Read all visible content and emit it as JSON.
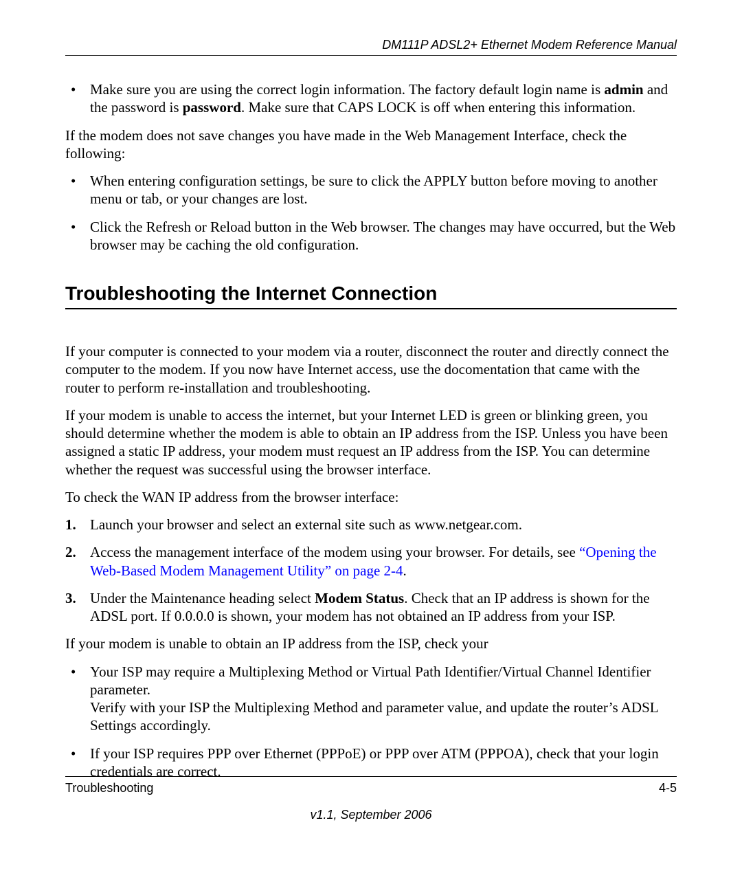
{
  "header": {
    "title": "DM111P ADSL2+ Ethernet Modem Reference Manual"
  },
  "intro_bullet": {
    "prefix": "Make sure you are using the correct login information. The factory default login name is ",
    "admin": "admin",
    "mid1": " and the password is ",
    "password": "password",
    "suffix": ". Make sure that CAPS LOCK is off when entering this information."
  },
  "para_nosave": "If the modem does not save changes you have made in the Web Management Interface, check the following:",
  "nosave_bullets": {
    "b1": "When entering configuration settings, be sure to click the APPLY button before moving to another menu or tab, or your changes are lost.",
    "b2": "Click the Refresh or Reload button in the Web browser. The changes may have occurred, but the Web browser may be caching the old configuration."
  },
  "section_title": "Troubleshooting the Internet Connection",
  "sec_p1": "If your computer is connected to your modem via a router, disconnect the router and directly connect the computer to the modem. If you now have Internet access, use the docomentation that came with the router to perform re-installation and troubleshooting.",
  "sec_p2": "If your modem is unable to access the internet, but your Internet LED is green or blinking green, you should determine whether the modem is able to obtain an IP address from the ISP. Unless you have been assigned a static IP address, your modem must request an IP address from the ISP. You can determine whether the request was successful using the browser interface.",
  "sec_p3": "To check the WAN IP address from the browser interface:",
  "steps": {
    "s1": {
      "num": "1.",
      "text": "Launch your browser and select an external site such as www.netgear.com."
    },
    "s2": {
      "num": "2.",
      "prefix": "Access the management interface of the modem using your browser. For details, see ",
      "link": "“Opening the Web-Based Modem Management Utility” on page 2-4",
      "suffix": "."
    },
    "s3": {
      "num": "3.",
      "prefix": "Under the Maintenance heading select ",
      "bold": "Modem Status",
      "suffix": ". Check that an IP address is shown for the ADSL port. If 0.0.0.0 is shown, your modem has not obtained an IP address from your ISP."
    }
  },
  "sec_p4": "If your modem is unable to obtain an IP address from the ISP, check your",
  "isp_bullets": {
    "b1_line1": "Your ISP may require a Multiplexing Method or Virtual Path Identifier/Virtual Channel Identifier parameter.",
    "b1_line2": "Verify with your ISP the Multiplexing Method and parameter value, and update the router’s ADSL Settings accordingly.",
    "b2": "If your ISP requires PPP over Ethernet (PPPoE) or PPP over ATM (PPPOA), check that your login credentials are correct."
  },
  "footer": {
    "left": "Troubleshooting",
    "right": "4-5",
    "version": "v1.1, September 2006"
  },
  "colors": {
    "text": "#000000",
    "link": "#0000ff",
    "background": "#ffffff"
  },
  "typography": {
    "body_family": "Times New Roman",
    "body_size_pt": 16,
    "heading_family": "Arial",
    "heading_size_pt": 21,
    "header_footer_size_pt": 14
  }
}
